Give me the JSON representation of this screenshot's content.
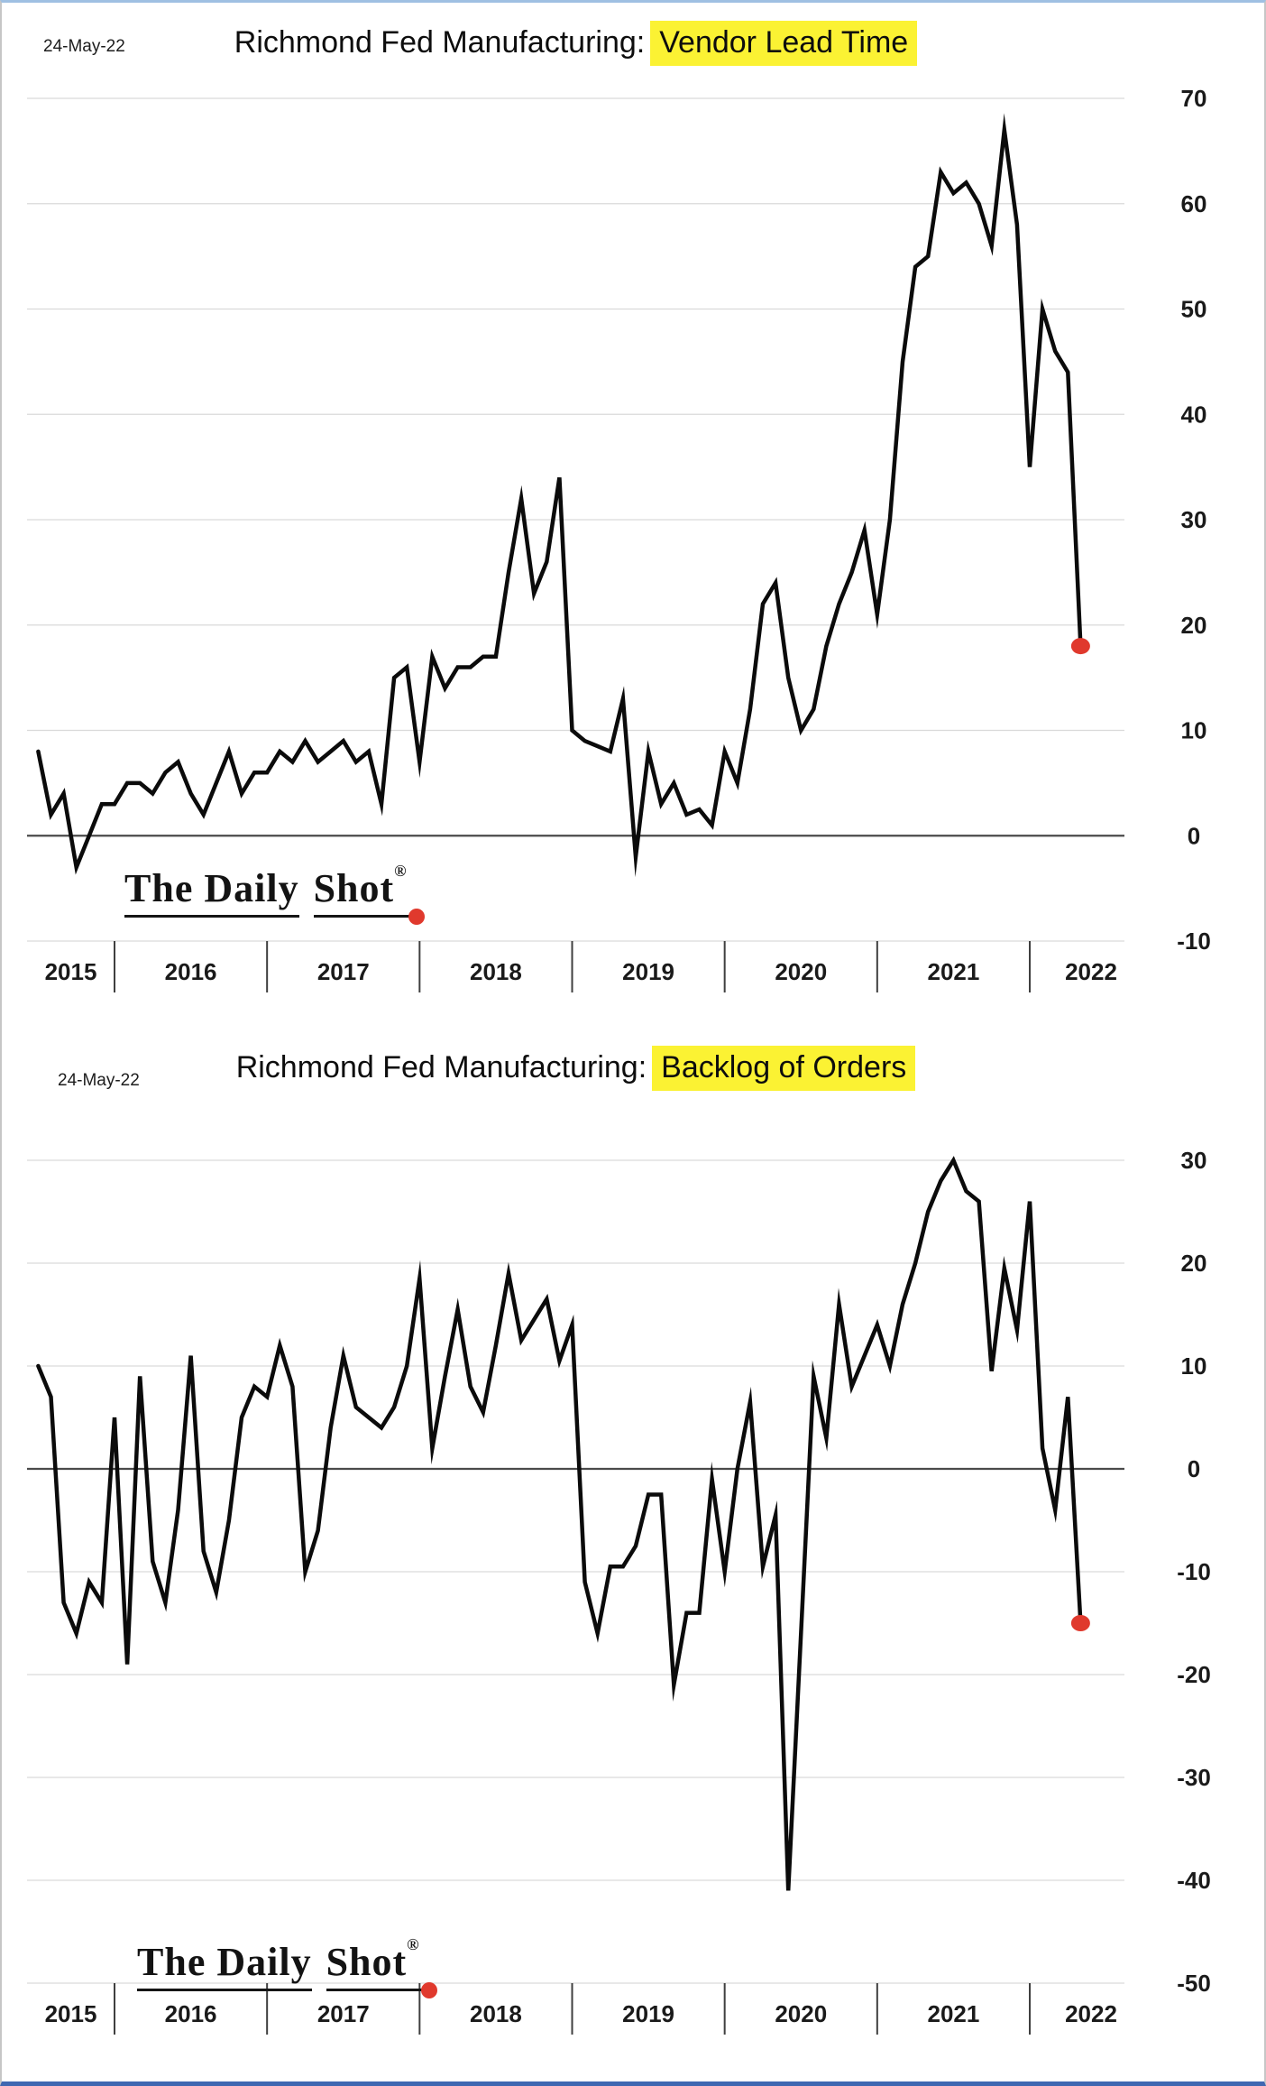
{
  "branding": {
    "logo_part1": "The Daily",
    "logo_part2": "Shot",
    "registered_mark": "®"
  },
  "colors": {
    "highlight_yellow": "#fbf233",
    "marker_red": "#e0392d",
    "line_black": "#0b0b0b",
    "grid_gray": "#d9d9d9",
    "zero_line": "#4a4a4a",
    "axis_text": "#1a1a1a"
  },
  "charts": [
    {
      "date": "24-May-22",
      "title_prefix": "Richmond Fed Manufacturing:",
      "title_highlight": "Vendor Lead Time",
      "chart_data": {
        "type": "line",
        "title": "Richmond Fed Manufacturing: Vendor Lead Time",
        "frequency": "monthly",
        "x_start": "Jul-2015",
        "x_end": "May-2022",
        "x_year_labels": [
          "2015",
          "2016",
          "2017",
          "2018",
          "2019",
          "2020",
          "2021",
          "2022"
        ],
        "ylim": [
          -10,
          70
        ],
        "ytick_step": 10,
        "yticks": [
          70,
          60,
          50,
          40,
          30,
          20,
          10,
          0,
          -10
        ],
        "grid": true,
        "zero_line": true,
        "legend": "none",
        "last_point": {
          "label": "May-2022",
          "value": 18,
          "marker": "red-dot"
        },
        "values": [
          8,
          2,
          4,
          -3,
          0,
          3,
          3,
          5,
          5,
          4,
          6,
          7,
          4,
          2,
          5,
          8,
          4,
          6,
          6,
          8,
          7,
          9,
          7,
          8,
          9,
          7,
          8,
          3,
          15,
          16,
          7,
          17,
          14,
          16,
          16,
          17,
          17,
          25,
          32,
          23,
          26,
          34,
          10,
          9,
          8.5,
          8,
          13,
          -2,
          8,
          3,
          5,
          2,
          2.5,
          1,
          8,
          5,
          12,
          22,
          24,
          15,
          10,
          12,
          18,
          22,
          25,
          29,
          21,
          30,
          45,
          54,
          55,
          63,
          61,
          62,
          60,
          56,
          67,
          58,
          35,
          50,
          46,
          44,
          18
        ]
      }
    },
    {
      "date": "24-May-22",
      "title_prefix": "Richmond Fed Manufacturing:",
      "title_highlight": "Backlog of Orders",
      "chart_data": {
        "type": "line",
        "title": "Richmond Fed Manufacturing: Backlog of Orders",
        "frequency": "monthly",
        "x_start": "Jul-2015",
        "x_end": "May-2022",
        "x_year_labels": [
          "2015",
          "2016",
          "2017",
          "2018",
          "2019",
          "2020",
          "2021",
          "2022"
        ],
        "ylim": [
          -50,
          30
        ],
        "ytick_step": 10,
        "yticks": [
          30,
          20,
          10,
          0,
          -10,
          -20,
          -30,
          -40,
          -50
        ],
        "grid": true,
        "zero_line": true,
        "legend": "none",
        "last_point": {
          "label": "May-2022",
          "value": -15,
          "marker": "red-dot"
        },
        "values": [
          10,
          7,
          -13,
          -16,
          -11,
          -13,
          5,
          -19,
          9,
          -9,
          -13,
          -4,
          11,
          -8,
          -12,
          -5,
          5,
          8,
          7,
          12,
          8,
          -10,
          -6,
          4,
          11,
          6,
          5,
          4,
          6,
          10,
          18.5,
          2,
          9,
          15.5,
          8,
          5.5,
          12,
          19,
          12.5,
          14.5,
          16.5,
          10.5,
          14,
          -11,
          -16,
          -9.5,
          -9.5,
          -7.5,
          -2.5,
          -2.5,
          -21,
          -14,
          -14,
          -1,
          -10,
          0,
          6.5,
          -9.5,
          -4.5,
          -41,
          -16,
          9,
          3,
          16,
          8,
          11,
          14,
          10,
          16,
          20,
          25,
          28,
          30,
          27,
          26,
          9.5,
          19.5,
          13.5,
          26,
          2,
          -4,
          7,
          -15
        ]
      }
    }
  ]
}
